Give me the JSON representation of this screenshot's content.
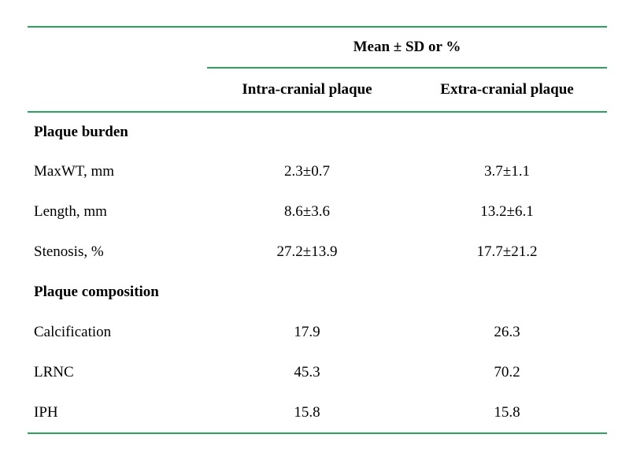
{
  "colors": {
    "accent": "#2aa35c",
    "text": "#000000"
  },
  "table": {
    "group_header": "Mean ± SD or %",
    "columns": [
      "Intra-cranial plaque",
      "Extra-cranial plaque"
    ],
    "rows": [
      {
        "label": "Plaque burden",
        "type": "section",
        "intra": "",
        "extra": ""
      },
      {
        "label": "MaxWT, mm",
        "type": "data",
        "intra": "2.3±0.7",
        "extra": "3.7±1.1"
      },
      {
        "label": "Length, mm",
        "type": "data",
        "intra": "8.6±3.6",
        "extra": "13.2±6.1"
      },
      {
        "label": "Stenosis, %",
        "type": "data",
        "intra": "27.2±13.9",
        "extra": "17.7±21.2"
      },
      {
        "label": "Plaque composition",
        "type": "section",
        "intra": "",
        "extra": ""
      },
      {
        "label": "Calcification",
        "type": "data",
        "intra": "17.9",
        "extra": "26.3"
      },
      {
        "label": "LRNC",
        "type": "data",
        "intra": "45.3",
        "extra": "70.2"
      },
      {
        "label": "IPH",
        "type": "data",
        "intra": "15.8",
        "extra": "15.8"
      }
    ]
  },
  "chart_data": {
    "type": "table",
    "title": "Mean ± SD or %",
    "categories": [
      "MaxWT, mm",
      "Length, mm",
      "Stenosis, %",
      "Calcification",
      "LRNC",
      "IPH"
    ],
    "series": [
      {
        "name": "Intra-cranial plaque",
        "values": [
          "2.3±0.7",
          "8.6±3.6",
          "27.2±13.9",
          "17.9",
          "45.3",
          "15.8"
        ]
      },
      {
        "name": "Extra-cranial plaque",
        "values": [
          "3.7±1.1",
          "13.2±6.1",
          "17.7±21.2",
          "26.3",
          "70.2",
          "15.8"
        ]
      }
    ]
  }
}
